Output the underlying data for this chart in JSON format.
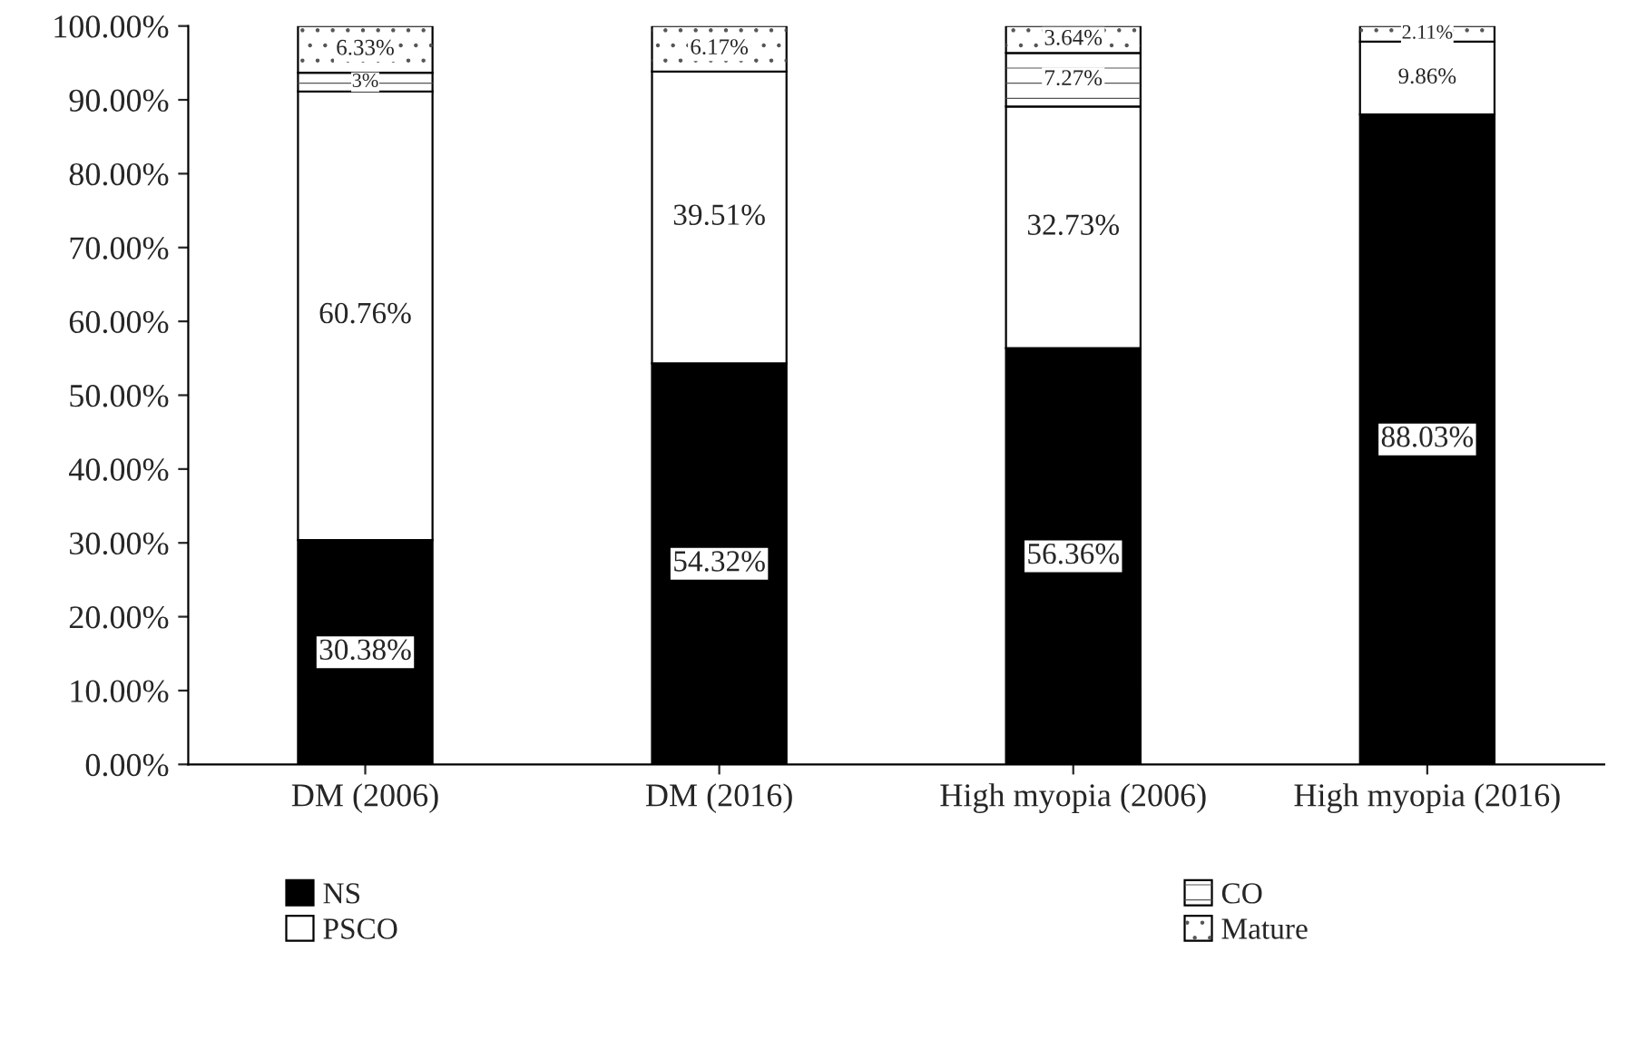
{
  "chart_data": {
    "type": "bar",
    "stacked": true,
    "categories": [
      "DM (2006)",
      "DM (2016)",
      "High myopia (2006)",
      "High myopia (2016)"
    ],
    "series": [
      {
        "name": "NS",
        "color": "#000000",
        "values": [
          30.38,
          54.32,
          56.36,
          88.03
        ],
        "value_labels": [
          "30.38%",
          "54.32%",
          "56.36%",
          "88.03%"
        ]
      },
      {
        "name": "PSCO",
        "color": "#ffffff",
        "values": [
          60.76,
          39.51,
          32.73,
          9.86
        ],
        "value_labels": [
          "60.76%",
          "39.51%",
          "32.73%",
          "9.86%"
        ]
      },
      {
        "name": "CO",
        "color": "#ffffff",
        "values": [
          2.53,
          null,
          7.27,
          null
        ],
        "value_labels": [
          "3%",
          null,
          "7.27%",
          null
        ]
      },
      {
        "name": "Mature",
        "color": "#ffffff",
        "values": [
          6.33,
          6.17,
          3.64,
          2.11
        ],
        "value_labels": [
          "6.33%",
          "6.17%",
          "3.64%",
          "2.11%"
        ]
      }
    ],
    "ylim": [
      0,
      100
    ],
    "yticks": [
      {
        "value": 0,
        "label": "0.00%"
      },
      {
        "value": 10,
        "label": "10.00%"
      },
      {
        "value": 20,
        "label": "20.00%"
      },
      {
        "value": 30,
        "label": "30.00%"
      },
      {
        "value": 40,
        "label": "40.00%"
      },
      {
        "value": 50,
        "label": "50.00%"
      },
      {
        "value": 60,
        "label": "60.00%"
      },
      {
        "value": 70,
        "label": "70.00%"
      },
      {
        "value": 80,
        "label": "80.00%"
      },
      {
        "value": 90,
        "label": "90.00%"
      },
      {
        "value": 100,
        "label": "100.00%"
      }
    ],
    "grid": false,
    "legend": "bottom"
  }
}
